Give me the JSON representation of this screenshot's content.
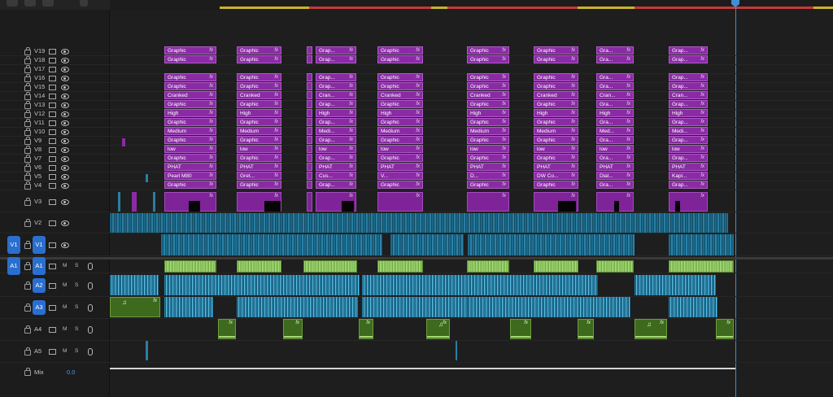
{
  "window": {
    "toolbar_icons": [
      "wrench-icon",
      "snap-icon",
      "linked-selection-icon",
      "marker-icon"
    ]
  },
  "colors": {
    "graphic_clip": "#8a2ba5",
    "video_clip": "#1c6b8c",
    "audio_green": "#9ed56e",
    "audio_teal": "#2682a6",
    "playhead": "#3f8fd8",
    "track_target": "#2a6fd0"
  },
  "video_tracks": [
    {
      "id": "V19",
      "label": "V19"
    },
    {
      "id": "V18",
      "label": "V18"
    },
    {
      "id": "V17",
      "label": "V17"
    },
    {
      "id": "V16",
      "label": "V16"
    },
    {
      "id": "V15",
      "label": "V15"
    },
    {
      "id": "V14",
      "label": "V14"
    },
    {
      "id": "V13",
      "label": "V13"
    },
    {
      "id": "V12",
      "label": "V12"
    },
    {
      "id": "V11",
      "label": "V11"
    },
    {
      "id": "V10",
      "label": "V10"
    },
    {
      "id": "V9",
      "label": "V9"
    },
    {
      "id": "V8",
      "label": "V8"
    },
    {
      "id": "V7",
      "label": "V7"
    },
    {
      "id": "V6",
      "label": "V6"
    },
    {
      "id": "V5",
      "label": "V5"
    },
    {
      "id": "V4",
      "label": "V4"
    },
    {
      "id": "V3",
      "label": "V3"
    },
    {
      "id": "V2",
      "label": "V2"
    },
    {
      "id": "V1",
      "label": "V1",
      "source": "V1"
    }
  ],
  "audio_tracks": [
    {
      "id": "A1",
      "label": "A1",
      "source": "A1",
      "m": "M",
      "s": "S"
    },
    {
      "id": "A2",
      "label": "A2",
      "m": "M",
      "s": "S"
    },
    {
      "id": "A3",
      "label": "A3",
      "m": "M",
      "s": "S"
    },
    {
      "id": "A4",
      "label": "A4",
      "m": "M",
      "s": "S"
    },
    {
      "id": "A5",
      "label": "A5",
      "m": "M",
      "s": "S"
    }
  ],
  "mix": {
    "label": "Mix",
    "value": "0.0"
  },
  "graphic_rows": [
    {
      "track": "V19",
      "labels": [
        "Graphic",
        "Graphic",
        "",
        "Grap...",
        "Graphic",
        "Graphic",
        "Graphic",
        "Gra...",
        "Grap..."
      ]
    },
    {
      "track": "V18",
      "labels": [
        "Graphic",
        "Graphic",
        "",
        "Grap...",
        "Graphic",
        "Graphic",
        "Graphic",
        "Gra...",
        "Grap..."
      ]
    },
    {
      "track": "V16",
      "labels": [
        "Graphic",
        "Graphic",
        "",
        "Grap...",
        "Graphic",
        "Graphic",
        "Graphic",
        "Gra...",
        "Grap..."
      ]
    },
    {
      "track": "V15",
      "labels": [
        "Graphic",
        "Graphic",
        "",
        "Grap...",
        "Graphic",
        "Graphic",
        "Graphic",
        "Gra...",
        "Grap..."
      ]
    },
    {
      "track": "V14",
      "labels": [
        "Cranked",
        "Cranked",
        "",
        "Cran...",
        "Cranked",
        "Cranked",
        "Cranked",
        "Cran...",
        "Cran..."
      ]
    },
    {
      "track": "V13",
      "labels": [
        "Graphic",
        "Graphic",
        "",
        "Grap...",
        "Graphic",
        "Graphic",
        "Graphic",
        "Gra...",
        "Grap..."
      ]
    },
    {
      "track": "V12",
      "labels": [
        "High",
        "High",
        "",
        "High",
        "High",
        "High",
        "High",
        "High",
        "High"
      ]
    },
    {
      "track": "V11",
      "labels": [
        "Graphic",
        "Graphic",
        "",
        "Grap...",
        "Graphic",
        "Graphic",
        "Graphic",
        "Gra...",
        "Grap..."
      ]
    },
    {
      "track": "V10",
      "labels": [
        "Medium",
        "Medium",
        "",
        "Medi...",
        "Medium",
        "Medium",
        "Medium",
        "Med...",
        "Medi..."
      ]
    },
    {
      "track": "V9",
      "labels": [
        "Graphic",
        "Graphic",
        "",
        "Grap...",
        "Graphic",
        "Graphic",
        "Graphic",
        "Gra...",
        "Grap..."
      ]
    },
    {
      "track": "V8",
      "labels": [
        "low",
        "low",
        "",
        "low",
        "low",
        "low",
        "low",
        "low",
        "low"
      ]
    },
    {
      "track": "V7",
      "labels": [
        "Graphic",
        "Graphic",
        "",
        "Grap...",
        "Graphic",
        "Graphic",
        "Graphic",
        "Gra...",
        "Grap..."
      ]
    },
    {
      "track": "V6",
      "labels": [
        "PHAT",
        "PHAT",
        "",
        "PHAT",
        "PHAT",
        "PHAT",
        "PHAT",
        "PHAT",
        "PHAT"
      ]
    },
    {
      "track": "V5",
      "labels": [
        "Pearl M80",
        "Gret...",
        "",
        "Cus...",
        "V...",
        "D...",
        "DW Co...",
        "Dial...",
        "Kapi..."
      ]
    },
    {
      "track": "V4",
      "labels": [
        "Graphic",
        "Graphic",
        "",
        "Grap...",
        "Graphic",
        "Graphic",
        "Graphic",
        "Gra...",
        "Grap..."
      ]
    }
  ],
  "clip_fx_label": "fx",
  "audio_note_glyph": "♫"
}
